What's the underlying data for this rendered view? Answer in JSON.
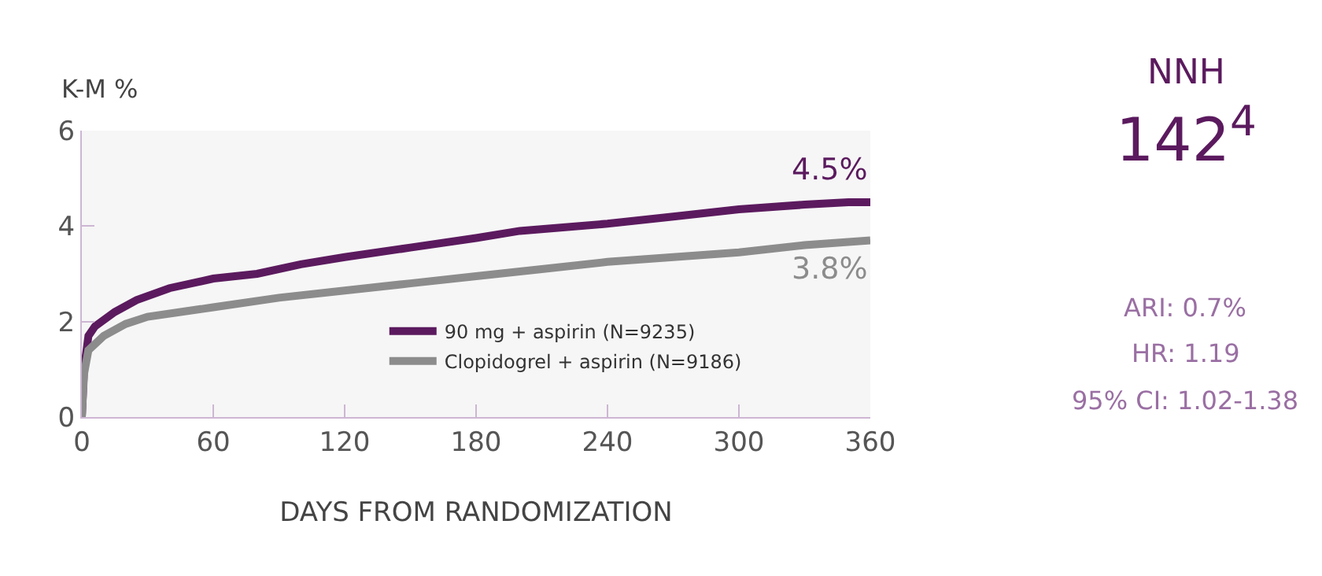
{
  "chart_data": {
    "type": "line",
    "ylabel": "K-M %",
    "xlabel": "DAYS FROM RANDOMIZATION",
    "xlim": [
      0,
      360
    ],
    "xticks": [
      0,
      60,
      120,
      180,
      240,
      300,
      360
    ],
    "ylim": [
      0,
      6
    ],
    "yticks": [
      0,
      2,
      4,
      6
    ],
    "grid": false,
    "legend": "bottom right",
    "marker": "none",
    "line_style": "solid",
    "series": [
      {
        "name": "90 mg + aspirin (N=9235)",
        "color": "#5b1a5e",
        "x": [
          0,
          1,
          3,
          6,
          15,
          25,
          40,
          60,
          80,
          100,
          120,
          150,
          180,
          200,
          240,
          270,
          300,
          330,
          350,
          360
        ],
        "values": [
          0,
          1.0,
          1.7,
          1.9,
          2.2,
          2.45,
          2.7,
          2.9,
          3.0,
          3.2,
          3.35,
          3.55,
          3.75,
          3.9,
          4.05,
          4.2,
          4.35,
          4.45,
          4.5,
          4.5
        ]
      },
      {
        "name": "Clopidogrel + aspirin (N=9186)",
        "color": "#8c8c8c",
        "x": [
          0,
          1,
          3,
          10,
          20,
          30,
          60,
          90,
          120,
          150,
          180,
          210,
          240,
          270,
          300,
          330,
          360
        ],
        "values": [
          0,
          0.9,
          1.4,
          1.7,
          1.95,
          2.1,
          2.3,
          2.5,
          2.65,
          2.8,
          2.95,
          3.1,
          3.25,
          3.35,
          3.45,
          3.6,
          3.7
        ]
      }
    ],
    "annotations": [
      {
        "text": "4.5%",
        "x": 360,
        "y": 4.5
      },
      {
        "text": "3.8%",
        "x": 360,
        "y": 3.8
      },
      "NNH",
      "142$^{4}$",
      "ARI: 0.7%",
      "HR: 1.19",
      "95% CI: 1.02-1.38"
    ]
  }
}
